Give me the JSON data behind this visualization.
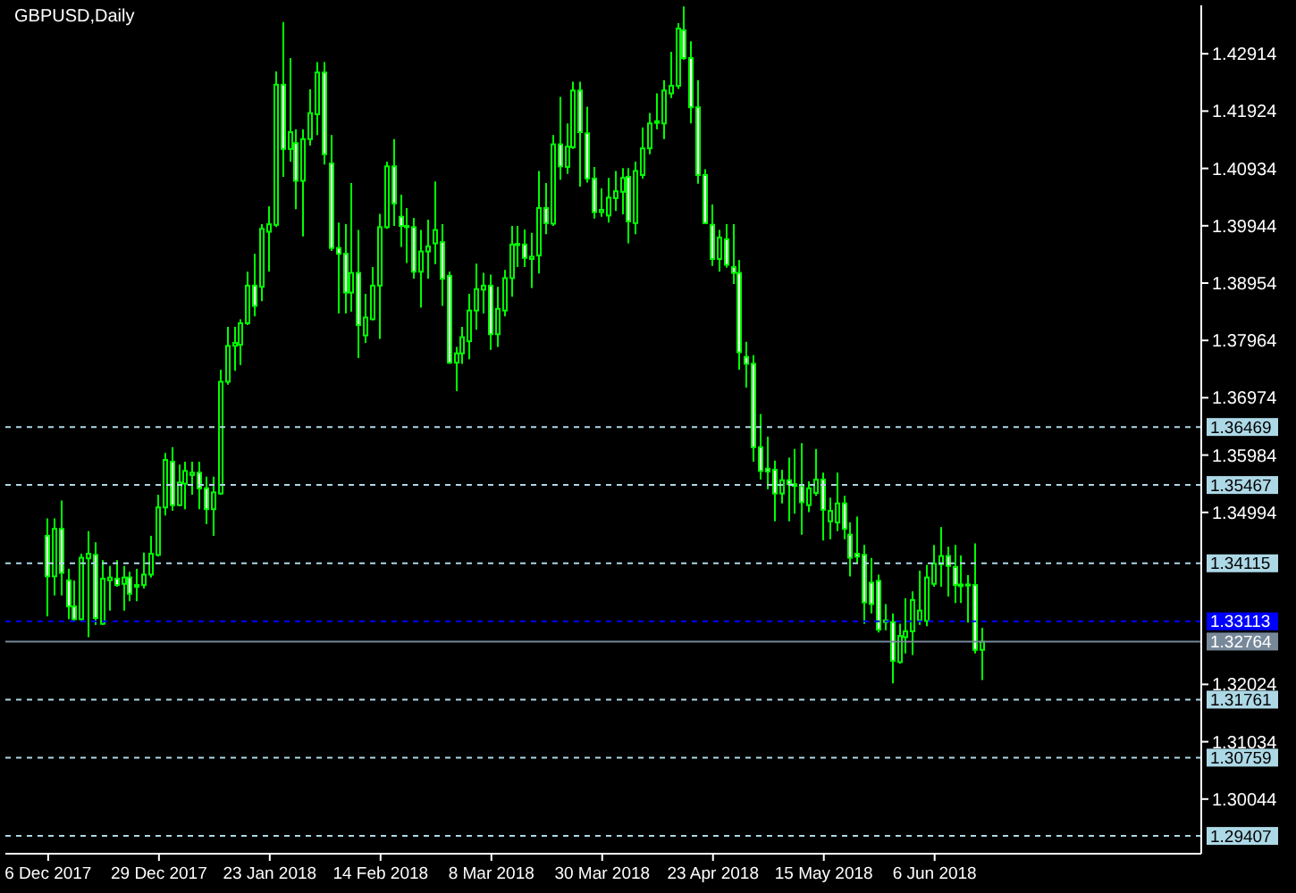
{
  "chart_data": {
    "type": "candlestick",
    "title": "GBPUSD,Daily",
    "color": "#00ff00",
    "colors": [
      "#ffffff",
      "#000000",
      "#ffffff",
      "#ffffff",
      "#ffffff",
      "#000000",
      "#000000",
      "#ffffff",
      "#000000",
      "#000000",
      "#ffffff",
      "#000000",
      "#ffffff",
      "#ffffff",
      "#000000",
      "#000000",
      "#000000",
      "#000000",
      "#ffffff",
      "#000000",
      "#000000",
      "#000000",
      "#ffffff",
      "#ffffff",
      "#000000",
      "#000000",
      "#000000",
      "#000000",
      "#000000",
      "#000000",
      "#ffffff",
      "#000000",
      "#000000",
      "#000000",
      "#ffffff",
      "#000000",
      "#ffffff",
      "#000000",
      "#000000",
      "#000000",
      "#ffffff",
      "#ffffff",
      "#ffffff",
      "#ffffff",
      "#000000",
      "#ffffff",
      "#000000",
      "#000000",
      "#000000",
      "#000000",
      "#ffffff",
      "#ffffff",
      "#ffffff",
      "#ffffff",
      "#000000",
      "#000000",
      "#000000",
      "#ffffff",
      "#ffffff",
      "#000000",
      "#000000",
      "#000000",
      "#000000",
      "#000000",
      "#ffffff",
      "#000000",
      "#000000",
      "#000000",
      "#000000",
      "#ffffff",
      "#000000",
      "#000000",
      "#ffffff",
      "#000000",
      "#ffffff",
      "#000000",
      "#000000",
      "#ffffff",
      "#ffffff",
      "#ffffff",
      "#000000",
      "#000000",
      "#000000",
      "#000000",
      "#ffffff",
      "#000000",
      "#000000",
      "#000000",
      "#000000",
      "#000000",
      "#000000",
      "#000000",
      "#ffffff",
      "#ffffff",
      "#ffffff",
      "#ffffff",
      "#ffffff",
      "#000000",
      "#ffffff",
      "#ffffff",
      "#ffffff",
      "#ffffff",
      "#ffffff",
      "#ffffff",
      "#ffffff",
      "#ffffff",
      "#000000",
      "#ffffff",
      "#ffffff",
      "#ffffff",
      "#000000",
      "#000000",
      "#ffffff",
      "#000000",
      "#000000",
      "#ffffff",
      "#ffffff",
      "#ffffff",
      "#ffffff",
      "#ffffff",
      "#ffffff",
      "#ffffff",
      "#ffffff",
      "#000000",
      "#000000",
      "#000000",
      "#000000",
      "#000000",
      "#000000",
      "#000000",
      "#ffffff",
      "#ffffff",
      "#ffffff",
      "#ffffff",
      "#ffffff",
      "#000000",
      null,
      null,
      null,
      null,
      null,
      null,
      null,
      null,
      null,
      null,
      null,
      null,
      null,
      null,
      null,
      null,
      null,
      null,
      null,
      null,
      null,
      null,
      null,
      null,
      null,
      null,
      null,
      null,
      null,
      null,
      null
    ],
    "categories": [
      "6 Dec 2017",
      null,
      null,
      null,
      null,
      null,
      null,
      null,
      null,
      null,
      null,
      null,
      null,
      null,
      null,
      null,
      "29 Dec 2017",
      null,
      null,
      null,
      null,
      null,
      null,
      null,
      null,
      null,
      null,
      null,
      null,
      null,
      null,
      null,
      "23 Jan 2018",
      null,
      null,
      null,
      null,
      null,
      null,
      null,
      null,
      null,
      null,
      null,
      null,
      null,
      null,
      null,
      "14 Feb 2018",
      null,
      null,
      null,
      null,
      null,
      null,
      null,
      null,
      null,
      null,
      null,
      null,
      null,
      null,
      null,
      "8 Mar 2018",
      null,
      null,
      null,
      null,
      null,
      null,
      null,
      null,
      null,
      null,
      null,
      null,
      null,
      null,
      null,
      "30 Mar 2018",
      null,
      null,
      null,
      null,
      null,
      null,
      null,
      null,
      null,
      null,
      null,
      null,
      null,
      null,
      null,
      "23 Apr 2018",
      null,
      null,
      null,
      null,
      null,
      null,
      null,
      null,
      null,
      null,
      null,
      null,
      null,
      null,
      null,
      "15 May 2018",
      null,
      null,
      null,
      null,
      null,
      null,
      null,
      null,
      null,
      null,
      null,
      null,
      null,
      null,
      null,
      "6 Jun 2018",
      null,
      null,
      null,
      null,
      null,
      null,
      null,
      null,
      null,
      null,
      null,
      null,
      null,
      null,
      null,
      null,
      null,
      null,
      null,
      null,
      null,
      null,
      null,
      null,
      null,
      null,
      null,
      null,
      null,
      null,
      null,
      null,
      null,
      null,
      null,
      null,
      null,
      null
    ],
    "ohlc": [
      [
        1.3459,
        1.3489,
        1.332,
        1.3389
      ],
      [
        1.3389,
        1.3489,
        1.3356,
        1.3471
      ],
      [
        1.3471,
        1.352,
        1.3356,
        1.3395
      ],
      [
        1.3382,
        1.3402,
        1.3315,
        1.3337
      ],
      [
        1.3337,
        1.3382,
        1.3313,
        1.3315
      ],
      [
        1.3315,
        1.3428,
        1.3313,
        1.3421
      ],
      [
        1.342,
        1.3467,
        1.3284,
        1.3428
      ],
      [
        1.3426,
        1.3448,
        1.3305,
        1.3317
      ],
      [
        1.3307,
        1.3417,
        1.3305,
        1.3385
      ],
      [
        1.3382,
        1.3407,
        1.333,
        1.3387
      ],
      [
        1.3385,
        1.3417,
        1.3371,
        1.3374
      ],
      [
        1.3376,
        1.3407,
        1.333,
        1.3387
      ],
      [
        1.3387,
        1.3397,
        1.3346,
        1.3359
      ],
      [
        1.3374,
        1.3402,
        1.3346,
        1.3371
      ],
      [
        1.3374,
        1.343,
        1.3368,
        1.3392
      ],
      [
        1.3392,
        1.3459,
        1.3387,
        1.3428
      ],
      [
        1.3426,
        1.353,
        1.3423,
        1.3508
      ],
      [
        1.3508,
        1.3602,
        1.3494,
        1.359
      ],
      [
        1.3587,
        1.3612,
        1.3502,
        1.3512
      ],
      [
        1.3512,
        1.3582,
        1.351,
        1.3551
      ],
      [
        1.3549,
        1.3587,
        1.3505,
        1.3571
      ],
      [
        1.3564,
        1.3587,
        1.353,
        1.3568
      ],
      [
        1.3568,
        1.3587,
        1.3505,
        1.3541
      ],
      [
        1.3541,
        1.3561,
        1.3479,
        1.3505
      ],
      [
        1.3505,
        1.3561,
        1.3459,
        1.3534
      ],
      [
        1.3532,
        1.3746,
        1.353,
        1.3725
      ],
      [
        1.3725,
        1.382,
        1.372,
        1.3787
      ],
      [
        1.3787,
        1.382,
        1.3744,
        1.3792
      ],
      [
        1.3789,
        1.3833,
        1.3754,
        1.3826
      ],
      [
        1.3826,
        1.3915,
        1.3823,
        1.3891
      ],
      [
        1.3891,
        1.3946,
        1.3838,
        1.3856
      ],
      [
        1.3889,
        1.3997,
        1.3864,
        1.3989
      ],
      [
        1.3984,
        1.4028,
        1.3915,
        1.3997
      ],
      [
        1.3996,
        1.4261,
        1.3992,
        1.4238
      ],
      [
        1.4238,
        1.4346,
        1.4079,
        1.4127
      ],
      [
        1.4127,
        1.4284,
        1.4105,
        1.4156
      ],
      [
        1.4137,
        1.4161,
        1.4023,
        1.4072
      ],
      [
        1.4072,
        1.4161,
        1.3976,
        1.4144
      ],
      [
        1.4144,
        1.423,
        1.4133,
        1.4189
      ],
      [
        1.4187,
        1.4277,
        1.4151,
        1.4259
      ],
      [
        1.4259,
        1.4277,
        1.41,
        1.4118
      ],
      [
        1.4102,
        1.4151,
        1.3951,
        1.3956
      ],
      [
        1.3956,
        1.4,
        1.3843,
        1.3946
      ],
      [
        1.3946,
        1.3997,
        1.3843,
        1.3879
      ],
      [
        1.3879,
        1.4068,
        1.3846,
        1.3913
      ],
      [
        1.3913,
        1.3987,
        1.3766,
        1.3823
      ],
      [
        1.3805,
        1.3877,
        1.3792,
        1.3836
      ],
      [
        1.3833,
        1.3923,
        1.3831,
        1.3891
      ],
      [
        1.3891,
        1.4015,
        1.3799,
        1.3992
      ],
      [
        1.3992,
        1.4105,
        1.3989,
        1.4097
      ],
      [
        1.4097,
        1.4144,
        1.3994,
        1.4033
      ],
      [
        1.401,
        1.4048,
        1.3958,
        1.3994
      ],
      [
        1.3994,
        1.4025,
        1.393,
        1.3992
      ],
      [
        1.3992,
        1.4008,
        1.3903,
        1.3915
      ],
      [
        1.3915,
        1.3987,
        1.3853,
        1.395
      ],
      [
        1.395,
        1.4005,
        1.3903,
        1.3959
      ],
      [
        1.3964,
        1.4071,
        1.3928,
        1.3987
      ],
      [
        1.3966,
        1.3997,
        1.3856,
        1.3903
      ],
      [
        1.3908,
        1.3915,
        1.3756,
        1.3758
      ],
      [
        1.3758,
        1.3785,
        1.3709,
        1.3774
      ],
      [
        1.3774,
        1.382,
        1.3756,
        1.3802
      ],
      [
        1.3795,
        1.3877,
        1.3764,
        1.3848
      ],
      [
        1.3848,
        1.3929,
        1.3815,
        1.3885
      ],
      [
        1.3884,
        1.3913,
        1.3843,
        1.3891
      ],
      [
        1.3891,
        1.391,
        1.378,
        1.3807
      ],
      [
        1.3807,
        1.3889,
        1.3785,
        1.3851
      ],
      [
        1.3848,
        1.3918,
        1.3838,
        1.3904
      ],
      [
        1.3904,
        1.3994,
        1.3872,
        1.3962
      ],
      [
        1.3961,
        1.3994,
        1.3923,
        1.3963
      ],
      [
        1.3962,
        1.3988,
        1.3923,
        1.3939
      ],
      [
        1.3937,
        1.3982,
        1.3887,
        1.3941
      ],
      [
        1.3943,
        1.4089,
        1.3912,
        1.4025
      ],
      [
        1.4025,
        1.4068,
        1.398,
        1.3999
      ],
      [
        1.3998,
        1.4151,
        1.3994,
        1.4135
      ],
      [
        1.4135,
        1.4217,
        1.4074,
        1.4097
      ],
      [
        1.4096,
        1.4171,
        1.4084,
        1.4131
      ],
      [
        1.413,
        1.4243,
        1.4127,
        1.4228
      ],
      [
        1.4228,
        1.4243,
        1.4062,
        1.4156
      ],
      [
        1.4154,
        1.42,
        1.4069,
        1.4076
      ],
      [
        1.4076,
        1.4096,
        1.4007,
        1.4018
      ],
      [
        1.4018,
        1.4059,
        1.401,
        1.4022
      ],
      [
        1.4012,
        1.4077,
        1.4,
        1.4043
      ],
      [
        1.4042,
        1.4089,
        1.402,
        1.4054
      ],
      [
        1.4053,
        1.4094,
        1.4014,
        1.4077
      ],
      [
        1.4079,
        1.4094,
        1.3964,
        1.4002
      ],
      [
        1.3999,
        1.4105,
        1.398,
        1.4089
      ],
      [
        1.4082,
        1.4164,
        1.4076,
        1.4128
      ],
      [
        1.4128,
        1.4189,
        1.4118,
        1.4171
      ],
      [
        1.4172,
        1.4223,
        1.4161,
        1.4175
      ],
      [
        1.4171,
        1.4246,
        1.4144,
        1.4228
      ],
      [
        1.4223,
        1.4295,
        1.4215,
        1.4236
      ],
      [
        1.4236,
        1.4344,
        1.4231,
        1.4335
      ],
      [
        1.4332,
        1.4373,
        1.4281,
        1.4284
      ],
      [
        1.4284,
        1.4313,
        1.4171,
        1.4199
      ],
      [
        1.4199,
        1.4246,
        1.4067,
        1.4082
      ],
      [
        1.4082,
        1.4092,
        1.3997,
        1.3999
      ],
      [
        1.3996,
        1.4031,
        1.3925,
        1.3937
      ],
      [
        1.3937,
        1.3987,
        1.3915,
        1.3974
      ],
      [
        1.3971,
        1.3997,
        1.3922,
        1.3927
      ],
      [
        1.3923,
        1.3997,
        1.3894,
        1.3913
      ],
      [
        1.3913,
        1.3935,
        1.3746,
        1.3776
      ],
      [
        1.3768,
        1.3794,
        1.3715,
        1.3756
      ],
      [
        1.3756,
        1.3771,
        1.3587,
        1.3612
      ],
      [
        1.3612,
        1.3669,
        1.3556,
        1.3571
      ],
      [
        1.3575,
        1.363,
        1.3539,
        1.357
      ],
      [
        1.3573,
        1.3589,
        1.3484,
        1.3532
      ],
      [
        1.3532,
        1.3573,
        1.3515,
        1.3555
      ],
      [
        1.3555,
        1.3594,
        1.3484,
        1.3548
      ],
      [
        1.3548,
        1.3609,
        1.3497,
        1.3545
      ],
      [
        1.3545,
        1.3619,
        1.3461,
        1.3517
      ],
      [
        1.3512,
        1.3553,
        1.35,
        1.3541
      ],
      [
        1.3533,
        1.3609,
        1.3528,
        1.3556
      ],
      [
        1.3556,
        1.3568,
        1.3451,
        1.3504
      ],
      [
        1.3484,
        1.3525,
        1.3453,
        1.3502
      ],
      [
        1.3482,
        1.3568,
        1.3467,
        1.3515
      ],
      [
        1.3515,
        1.3528,
        1.3453,
        1.3471
      ],
      [
        1.3461,
        1.3482,
        1.3389,
        1.3421
      ],
      [
        1.3428,
        1.3492,
        1.3412,
        1.3423
      ],
      [
        1.3426,
        1.3443,
        1.3307,
        1.3344
      ],
      [
        1.3378,
        1.3421,
        1.3325,
        1.3341
      ],
      [
        1.3381,
        1.3392,
        1.3292,
        1.3297
      ],
      [
        1.3313,
        1.3341,
        1.3296,
        1.331
      ],
      [
        1.331,
        1.3325,
        1.3204,
        1.3243
      ],
      [
        1.3241,
        1.3307,
        1.3238,
        1.3286
      ],
      [
        1.3284,
        1.3351,
        1.3256,
        1.3294
      ],
      [
        1.3294,
        1.3363,
        1.3253,
        1.3348
      ],
      [
        1.3313,
        1.3399,
        1.3305,
        1.333
      ],
      [
        1.3312,
        1.3409,
        1.3303,
        1.3387
      ],
      [
        1.3376,
        1.3443,
        1.3371,
        1.3411
      ],
      [
        1.341,
        1.3474,
        1.3371,
        1.3424
      ],
      [
        1.3424,
        1.344,
        1.3354,
        1.3407
      ],
      [
        1.3405,
        1.3443,
        1.3343,
        1.3374
      ],
      [
        1.3375,
        1.3425,
        1.3343,
        1.3372
      ],
      [
        1.3375,
        1.3391,
        1.3309,
        1.3373
      ],
      [
        1.3374,
        1.3446,
        1.3256,
        1.3262
      ],
      [
        1.3262,
        1.33,
        1.321,
        1.3276
      ],
      null,
      null,
      null,
      null,
      null,
      null,
      null,
      null,
      null,
      null,
      null,
      null,
      null,
      null,
      null,
      null,
      null,
      null,
      null,
      null,
      null,
      null,
      null,
      null,
      null,
      null,
      null,
      null,
      null,
      null,
      null
    ],
    "ylim": [
      1.291,
      1.4375
    ],
    "yticks": [
      1.42914,
      1.41924,
      1.40934,
      1.39944,
      1.38954,
      1.37964,
      1.36974,
      1.35984,
      1.34994,
      1.32024,
      1.31034,
      1.30044
    ],
    "ref_lines": [
      {
        "axis": "y",
        "value": 1.36469,
        "label": "1.36469",
        "color": "#add8e6",
        "line_style": "dashed"
      },
      {
        "axis": "y",
        "value": 1.35467,
        "label": "1.35467",
        "color": "#add8e6",
        "line_style": "dashed"
      },
      {
        "axis": "y",
        "value": 1.34115,
        "label": "1.34115",
        "color": "#add8e6",
        "line_style": "dashed"
      },
      {
        "axis": "y",
        "value": 1.33113,
        "label": "1.33113",
        "color": "#0000ff",
        "line_style": "dashed"
      },
      {
        "axis": "y",
        "value": 1.32764,
        "label": "1.32764",
        "color": "#778899",
        "line_style": "solid"
      },
      {
        "axis": "y",
        "value": 1.31761,
        "label": "1.31761",
        "color": "#add8e6",
        "line_style": "dashed"
      },
      {
        "axis": "y",
        "value": 1.30759,
        "label": "1.30759",
        "color": "#add8e6",
        "line_style": "dashed"
      },
      {
        "axis": "y",
        "value": 1.29407,
        "label": "1.29407",
        "color": "#add8e6",
        "line_style": "dashed"
      }
    ]
  }
}
